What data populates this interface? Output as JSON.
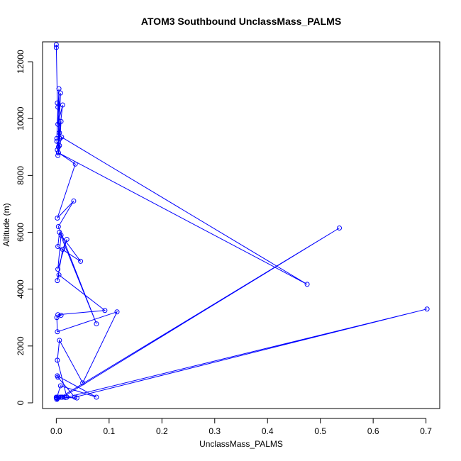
{
  "chart_data": {
    "type": "line",
    "title": "ATOM3 Southbound UnclassMass_PALMS",
    "xlabel": "UnclassMass_PALMS",
    "ylabel": "Altitude (m)",
    "xlim": [
      -0.026,
      0.726
    ],
    "ylim": [
      -200,
      12700
    ],
    "x_ticks": [
      0,
      0.1,
      0.2,
      0.3,
      0.4,
      0.5,
      0.6,
      0.7
    ],
    "x_tick_labels": [
      "0.0",
      "0.1",
      "0.2",
      "0.3",
      "0.4",
      "0.5",
      "0.6",
      "0.7"
    ],
    "y_ticks": [
      0,
      2000,
      4000,
      6000,
      8000,
      10000,
      12000
    ],
    "y_tick_labels": [
      "0",
      "2000",
      "4000",
      "6000",
      "8000",
      "10000",
      "12000"
    ],
    "series_color": "#0000ff",
    "marker": "open-circle",
    "series": [
      {
        "x": [
          0.0,
          0.0,
          0.002,
          0.003,
          0.001,
          0.005,
          0.004,
          0.008,
          0.003,
          0.012,
          0.006,
          0.002,
          0.007,
          0.009,
          0.004,
          0.001,
          0.006,
          0.003,
          0.01,
          0.475,
          0.004,
          0.036,
          0.002,
          0.033,
          0.004,
          0.076,
          0.006,
          0.003,
          0.046,
          0.009,
          0.003,
          0.02,
          0.012,
          0.002,
          0.005,
          0.092,
          0.003,
          0.009,
          0.001,
          0.002,
          0.115,
          0.05,
          0.006,
          0.002,
          0.02,
          0.702,
          0.035,
          0.003,
          0.002,
          0.076,
          0.008,
          0.001,
          0.001,
          0.008,
          0.536,
          0.012,
          0.0,
          0.004,
          0.02,
          0.039,
          0.017,
          0.011,
          0.002,
          0.009,
          0.0,
          0.001
        ],
        "y": [
          12600,
          12500,
          10550,
          10400,
          9300,
          11050,
          9000,
          10900,
          9800,
          10480,
          9500,
          8900,
          9300,
          9900,
          8800,
          9200,
          9050,
          8700,
          9350,
          4170,
          8800,
          8400,
          6500,
          7100,
          6200,
          2780,
          6000,
          5500,
          4980,
          5900,
          4700,
          5750,
          5400,
          4300,
          4500,
          3250,
          3100,
          3080,
          3000,
          2500,
          3200,
          700,
          2200,
          1500,
          200,
          3300,
          200,
          900,
          950,
          200,
          600,
          180,
          120,
          200,
          6150,
          200,
          170,
          200,
          200,
          170,
          190,
          200,
          150,
          200,
          200,
          170
        ]
      }
    ]
  }
}
